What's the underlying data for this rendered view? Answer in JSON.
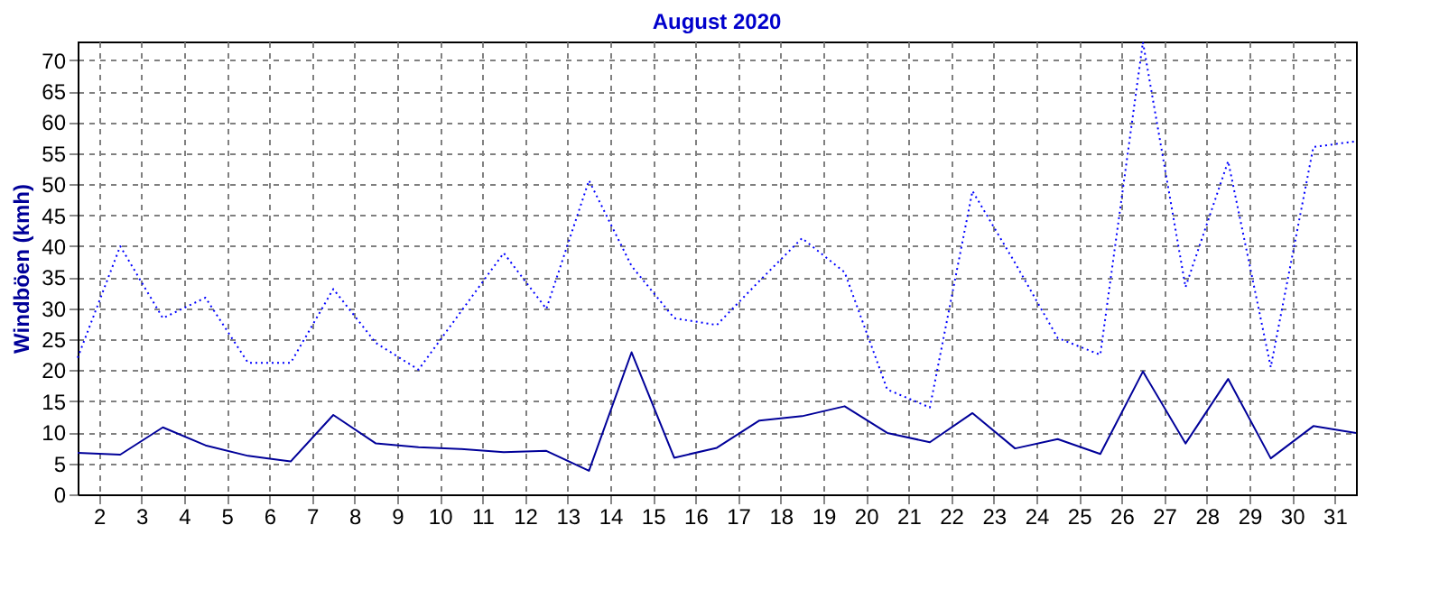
{
  "chart_data": {
    "type": "line",
    "title": "August 2020",
    "ylabel": "Windböen (kmh)",
    "x": [
      1.5,
      2.5,
      3.5,
      4.5,
      5.5,
      6.5,
      7.5,
      8.5,
      9.5,
      10.5,
      11.5,
      12.5,
      13.5,
      14.5,
      15.5,
      16.5,
      17.5,
      18.5,
      19.5,
      20.5,
      21.5,
      22.5,
      23.5,
      24.5,
      25.5,
      26.5,
      27.5,
      28.5,
      29.5,
      30.5,
      31.5
    ],
    "series": [
      {
        "color": "#0000ff",
        "line_style": "dotted",
        "values": [
          22,
          40,
          28.4,
          31.7,
          21.2,
          21.2,
          33.1,
          24.4,
          20.1,
          29.5,
          38.9,
          29.9,
          50.6,
          36.8,
          28.4,
          27.3,
          34.4,
          41.3,
          35.8,
          16.9,
          14,
          48.9,
          37.3,
          25.2,
          22.5,
          72.9,
          33.4,
          53.7,
          20.5,
          56,
          56.9
        ]
      },
      {
        "color": "#000099",
        "line_style": "solid",
        "values": [
          6.7,
          6.4,
          10.8,
          7.9,
          6.2,
          5.3,
          12.8,
          8.2,
          7.6,
          7.3,
          6.8,
          7.0,
          3.8,
          22.9,
          5.9,
          7.5,
          11.9,
          12.6,
          14.2,
          9.9,
          8.4,
          13.1,
          7.4,
          8.9,
          6.5,
          19.8,
          8.2,
          18.6,
          5.8,
          11,
          9.9
        ]
      }
    ],
    "xlim": [
      1.5,
      31.5
    ],
    "xticks": [
      2,
      3,
      4,
      5,
      6,
      7,
      8,
      9,
      10,
      11,
      12,
      13,
      14,
      15,
      16,
      17,
      18,
      19,
      20,
      21,
      22,
      23,
      24,
      25,
      26,
      27,
      28,
      29,
      30,
      31
    ],
    "ylim": [
      0,
      73
    ],
    "yticks": [
      0,
      5,
      10,
      15,
      20,
      25,
      30,
      35,
      40,
      45,
      50,
      55,
      60,
      65,
      70
    ],
    "grid": true,
    "legend": false,
    "marker": "none"
  }
}
